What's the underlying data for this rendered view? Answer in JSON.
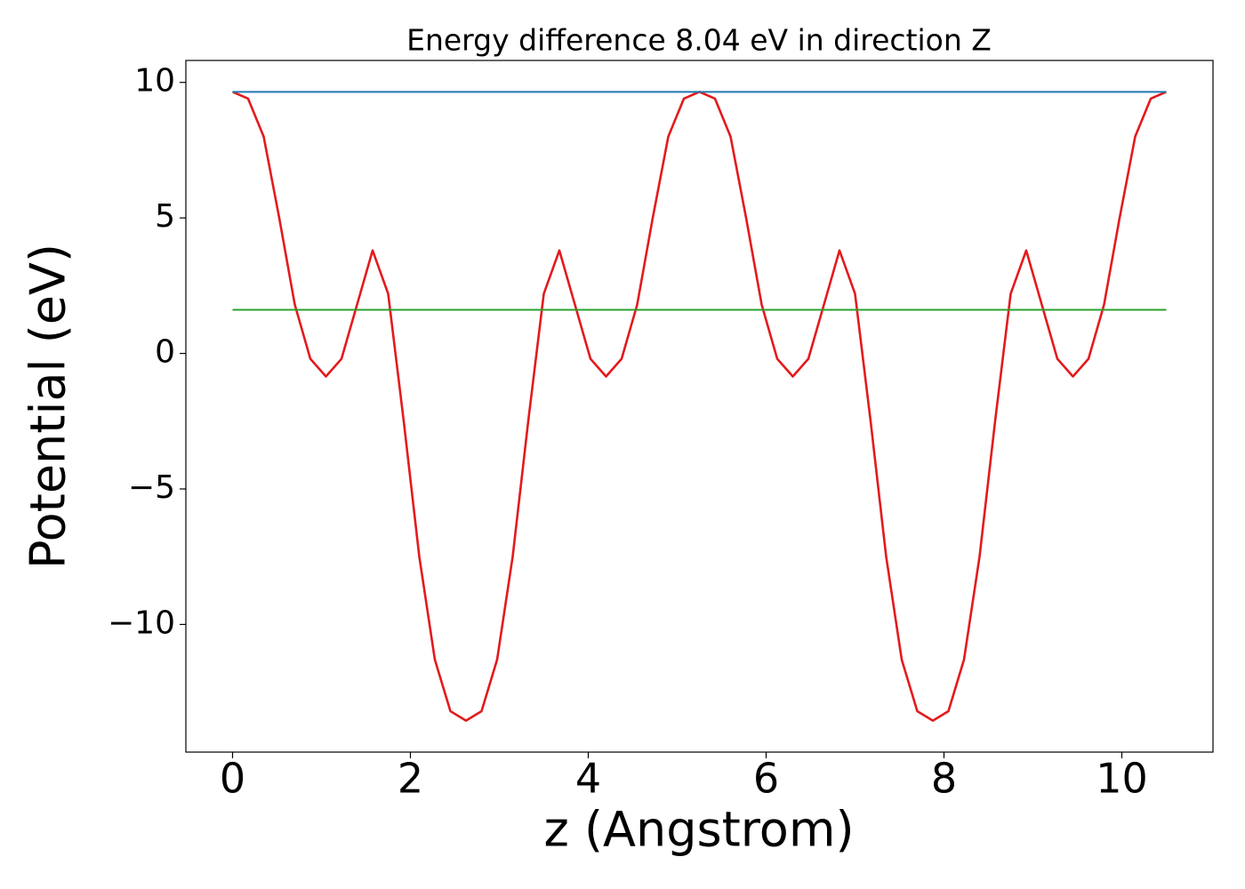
{
  "chart_data": {
    "type": "line",
    "title": "Energy difference 8.04 eV in direction Z",
    "x_label": "z (Angstrom)",
    "y_label": "Potential (eV)",
    "series": [
      {
        "color": "#e31a1c",
        "x": [
          0,
          0.175,
          0.35,
          0.525,
          0.7,
          0.875,
          1.05,
          1.225,
          1.4,
          1.575,
          1.75,
          1.925,
          2.1,
          2.275,
          2.45,
          2.625,
          2.8,
          2.975,
          3.15,
          3.325,
          3.5,
          3.675,
          3.85,
          4.025,
          4.2,
          4.375,
          4.55,
          4.725,
          4.9,
          5.075,
          5.25,
          5.425,
          5.6,
          5.775,
          5.95,
          6.125,
          6.3,
          6.475,
          6.65,
          6.825,
          7.0,
          7.175,
          7.35,
          7.525,
          7.7,
          7.875,
          8.05,
          8.225,
          8.4,
          8.575,
          8.75,
          8.925,
          9.1,
          9.275,
          9.45,
          9.625,
          9.8,
          9.975,
          10.15,
          10.325,
          10.5
        ],
        "values": [
          9.65,
          9.4,
          8.0,
          5.0,
          1.8,
          -0.2,
          -0.85,
          -0.2,
          1.8,
          3.8,
          2.2,
          -2.5,
          -7.5,
          -11.3,
          -13.2,
          -13.55,
          -13.2,
          -11.3,
          -7.5,
          -2.5,
          2.2,
          3.8,
          1.8,
          -0.2,
          -0.85,
          -0.2,
          1.8,
          5.0,
          8.0,
          9.4,
          9.65,
          9.4,
          8.0,
          5.0,
          1.8,
          -0.2,
          -0.85,
          -0.2,
          1.8,
          3.8,
          2.2,
          -2.5,
          -7.5,
          -11.3,
          -13.2,
          -13.55,
          -13.2,
          -11.3,
          -7.5,
          -2.5,
          2.2,
          3.8,
          1.8,
          -0.2,
          -0.85,
          -0.2,
          1.8,
          5.0,
          8.0,
          9.4,
          9.65
        ]
      },
      {
        "color": "#1f77b4",
        "x": [
          0,
          10.5
        ],
        "values": [
          9.65,
          9.65
        ]
      },
      {
        "color": "#2ca02c",
        "x": [
          0,
          10.5
        ],
        "values": [
          1.61,
          1.61
        ]
      }
    ],
    "xlim": [
      -0.525,
      11.025
    ],
    "xticks": [
      0,
      2,
      4,
      6,
      8,
      10
    ],
    "ylim": [
      -14.71,
      10.81
    ],
    "yticks": [
      {
        "value": -10,
        "label": "−10"
      },
      {
        "value": -5,
        "label": "−5"
      },
      0,
      5,
      10
    ],
    "grid": false
  }
}
